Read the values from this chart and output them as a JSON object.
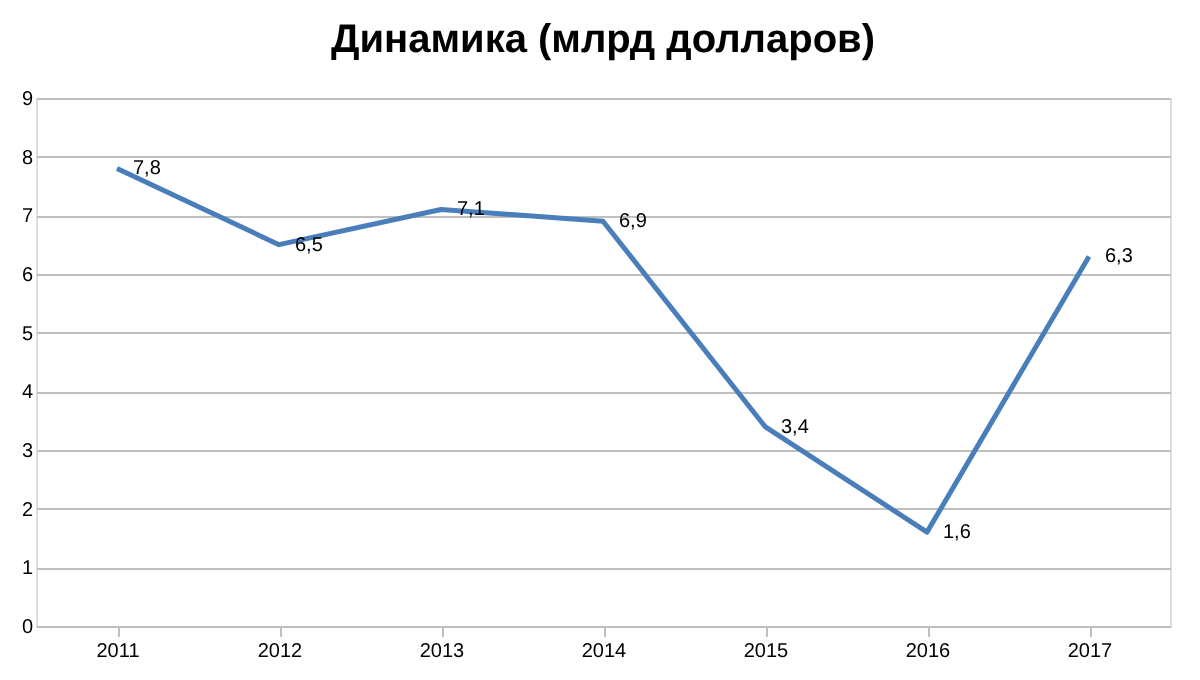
{
  "chart_data": {
    "type": "line",
    "title": "Динамика (млрд долларов)",
    "categories": [
      "2011",
      "2012",
      "2013",
      "2014",
      "2015",
      "2016",
      "2017"
    ],
    "series": [
      {
        "color": "#4a7ebb",
        "values": [
          7.8,
          6.5,
          7.1,
          6.9,
          3.4,
          1.6,
          6.3
        ],
        "value_labels": [
          "7,8",
          "6,5",
          "7,1",
          "6,9",
          "3,4",
          "1,6",
          "6,3"
        ]
      }
    ],
    "ylim": [
      0,
      9
    ],
    "yticks": [
      0,
      1,
      2,
      3,
      4,
      5,
      6,
      7,
      8,
      9
    ],
    "grid": "y",
    "marker": "none",
    "line_style": "solid"
  }
}
